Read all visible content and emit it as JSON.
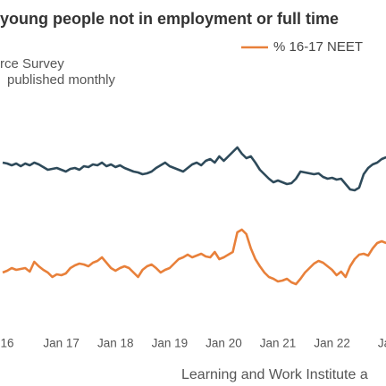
{
  "chart_data": {
    "type": "line",
    "title": "young people not in employment or full time",
    "subtitle": [
      "rce Survey",
      "published monthly"
    ],
    "source": "Learning and Work Institute a",
    "categories": [
      null,
      "16",
      null,
      null,
      null,
      null,
      null,
      null,
      null,
      null,
      null,
      null,
      null,
      "Jan 17",
      null,
      null,
      null,
      null,
      null,
      null,
      null,
      null,
      null,
      null,
      null,
      "Jan 18",
      null,
      null,
      null,
      null,
      null,
      null,
      null,
      null,
      null,
      null,
      null,
      "Jan 19",
      null,
      null,
      null,
      null,
      null,
      null,
      null,
      null,
      null,
      null,
      null,
      "Jan 20",
      null,
      null,
      null,
      null,
      null,
      null,
      null,
      null,
      null,
      null,
      null,
      "Jan 21",
      null,
      null,
      null,
      null,
      null,
      null,
      null,
      null,
      null,
      null,
      null,
      "Jan 22",
      null,
      null,
      null,
      null,
      null,
      null,
      null,
      null,
      null,
      null,
      null,
      "Jar"
    ],
    "ylim": [
      0,
      210
    ],
    "series": [
      {
        "color": "#2e4a5a",
        "values": [
          158,
          157,
          155,
          157,
          154,
          157,
          155,
          158,
          156,
          153,
          150,
          151,
          152,
          150,
          148,
          151,
          152,
          150,
          154,
          153,
          156,
          155,
          158,
          154,
          156,
          153,
          155,
          152,
          150,
          148,
          147,
          145,
          146,
          148,
          152,
          155,
          158,
          154,
          152,
          150,
          148,
          152,
          156,
          158,
          155,
          160,
          162,
          158,
          165,
          160,
          165,
          170,
          175,
          168,
          163,
          165,
          158,
          150,
          145,
          140,
          136,
          138,
          136,
          134,
          135,
          140,
          148,
          147,
          146,
          145,
          146,
          142,
          140,
          141,
          139,
          140,
          134,
          128,
          127,
          130,
          145,
          152,
          156,
          158,
          162,
          164
        ]
      },
      {
        "name": "% 16-17 NEET",
        "color": "#e8803a",
        "values": [
          35,
          37,
          40,
          38,
          39,
          40,
          36,
          47,
          42,
          38,
          35,
          30,
          33,
          32,
          34,
          40,
          43,
          45,
          44,
          42,
          46,
          48,
          52,
          46,
          40,
          37,
          40,
          42,
          40,
          35,
          30,
          38,
          42,
          44,
          40,
          35,
          38,
          40,
          45,
          50,
          52,
          55,
          52,
          54,
          56,
          53,
          52,
          58,
          50,
          52,
          55,
          58,
          80,
          83,
          78,
          62,
          50,
          42,
          35,
          30,
          28,
          25,
          26,
          28,
          24,
          22,
          28,
          35,
          40,
          45,
          48,
          46,
          42,
          38,
          32,
          36,
          30,
          42,
          50,
          55,
          56,
          54,
          62,
          68,
          70,
          68
        ]
      }
    ]
  }
}
